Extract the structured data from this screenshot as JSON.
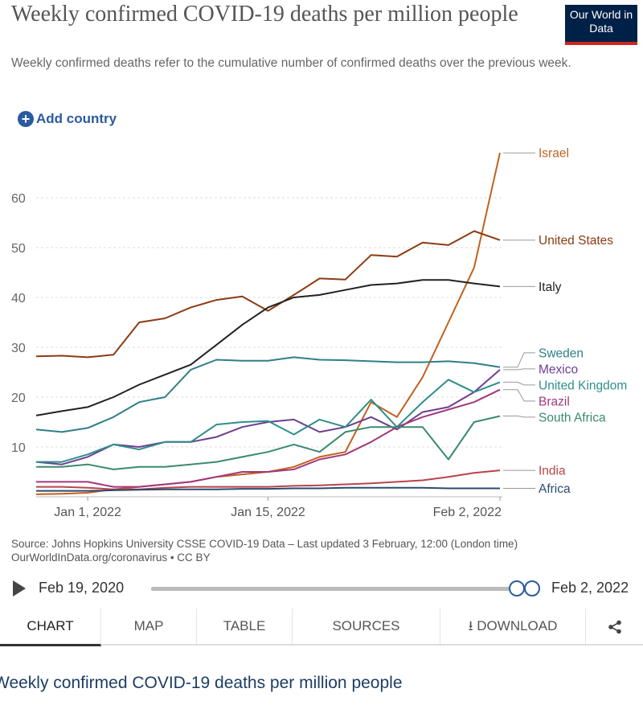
{
  "chart_data": {
    "type": "line",
    "title": "Weekly confirmed COVID-19 deaths per million people",
    "subtitle": "Weekly confirmed deaths refer to the cumulative number of confirmed deaths over the previous week.",
    "x": [
      -4,
      -2,
      0,
      2,
      4,
      6,
      8,
      10,
      12,
      14,
      16,
      18,
      20,
      22,
      24,
      26,
      28,
      30,
      32
    ],
    "xlim": [
      -4,
      32
    ],
    "xticks": [
      {
        "value": 0,
        "label": "Jan 1, 2022"
      },
      {
        "value": 14,
        "label": "Jan 15, 2022"
      },
      {
        "value": 32,
        "label": "Feb 2, 2022"
      }
    ],
    "ylim": [
      0,
      70
    ],
    "yticks": [
      10,
      20,
      30,
      40,
      50,
      60
    ],
    "grid": true,
    "series": [
      {
        "name": "Israel",
        "color": "#c0611f",
        "values": [
          0.5,
          0.6,
          0.8,
          1.5,
          2,
          2.5,
          3,
          4,
          4.5,
          5,
          6,
          8,
          9,
          19,
          16,
          24,
          35,
          46,
          69
        ]
      },
      {
        "name": "United States",
        "color": "#8c3b14",
        "values": [
          28.2,
          28.3,
          28,
          28.5,
          35,
          35.8,
          38,
          39.5,
          40.2,
          37.3,
          40.5,
          43.8,
          43.6,
          48.5,
          48.2,
          51,
          50.5,
          53.3,
          51.5
        ]
      },
      {
        "name": "Italy",
        "color": "#222222",
        "values": [
          16.3,
          17.2,
          18,
          20,
          22.5,
          24.5,
          26.5,
          30.5,
          34.5,
          38,
          40,
          40.5,
          41.5,
          42.5,
          42.8,
          43.5,
          43.5,
          42.8,
          42.2
        ]
      },
      {
        "name": "Sweden",
        "color": "#2f7f86",
        "values": [
          13.5,
          13,
          13.8,
          16,
          19,
          20,
          25.5,
          27.5,
          27.3,
          27.3,
          28,
          27.5,
          27.4,
          27.2,
          27,
          27,
          27.2,
          26.8,
          26
        ]
      },
      {
        "name": "Mexico",
        "color": "#6d3e91",
        "values": [
          7,
          6.5,
          8,
          10.5,
          10,
          11,
          11,
          12,
          14,
          15,
          15.5,
          13,
          14,
          16,
          13.5,
          17,
          18,
          21,
          25.5
        ]
      },
      {
        "name": "United Kingdom",
        "color": "#2f8e8a",
        "values": [
          7,
          7,
          8.5,
          10.5,
          9.5,
          11,
          11,
          14.5,
          15,
          15.2,
          12.5,
          15.5,
          14,
          19.5,
          14,
          19,
          23.5,
          21,
          23
        ]
      },
      {
        "name": "Brazil",
        "color": "#a2387c",
        "values": [
          3,
          3,
          3,
          2,
          2,
          2.5,
          3,
          4,
          5,
          5,
          5.5,
          7.5,
          8.5,
          11,
          14,
          16,
          17.5,
          19,
          21.5
        ]
      },
      {
        "name": "South Africa",
        "color": "#3b8a6c",
        "values": [
          6,
          6,
          6.5,
          5.5,
          6,
          6,
          6.5,
          7,
          8,
          9,
          10.5,
          9,
          13,
          14,
          14,
          14,
          7.5,
          15,
          16.2
        ]
      },
      {
        "name": "India",
        "color": "#b8444f",
        "values": [
          2,
          2,
          1.8,
          1.5,
          1.5,
          1.8,
          2,
          2,
          2,
          2,
          2.2,
          2.3,
          2.5,
          2.7,
          3,
          3.3,
          4,
          4.8,
          5.3
        ]
      },
      {
        "name": "Africa",
        "color": "#2c4b6e",
        "values": [
          1.2,
          1.2,
          1.2,
          1.3,
          1.4,
          1.5,
          1.5,
          1.5,
          1.6,
          1.6,
          1.7,
          1.7,
          1.8,
          1.8,
          1.8,
          1.8,
          1.7,
          1.7,
          1.7
        ]
      }
    ]
  },
  "header": {
    "logo": "Our World in Data",
    "add_country": "Add country"
  },
  "source": {
    "line1": "Source: Johns Hopkins University CSSE COVID-19 Data – Last updated 3 February, 12:00 (London time)",
    "line2": "OurWorldInData.org/coronavirus • CC BY"
  },
  "timeline": {
    "start": "Feb 19, 2020",
    "end": "Feb 2, 2022"
  },
  "tabs": [
    "CHART",
    "MAP",
    "TABLE",
    "SOURCES",
    "DOWNLOAD"
  ],
  "footer_heading": "Weekly confirmed COVID-19 deaths per million people"
}
